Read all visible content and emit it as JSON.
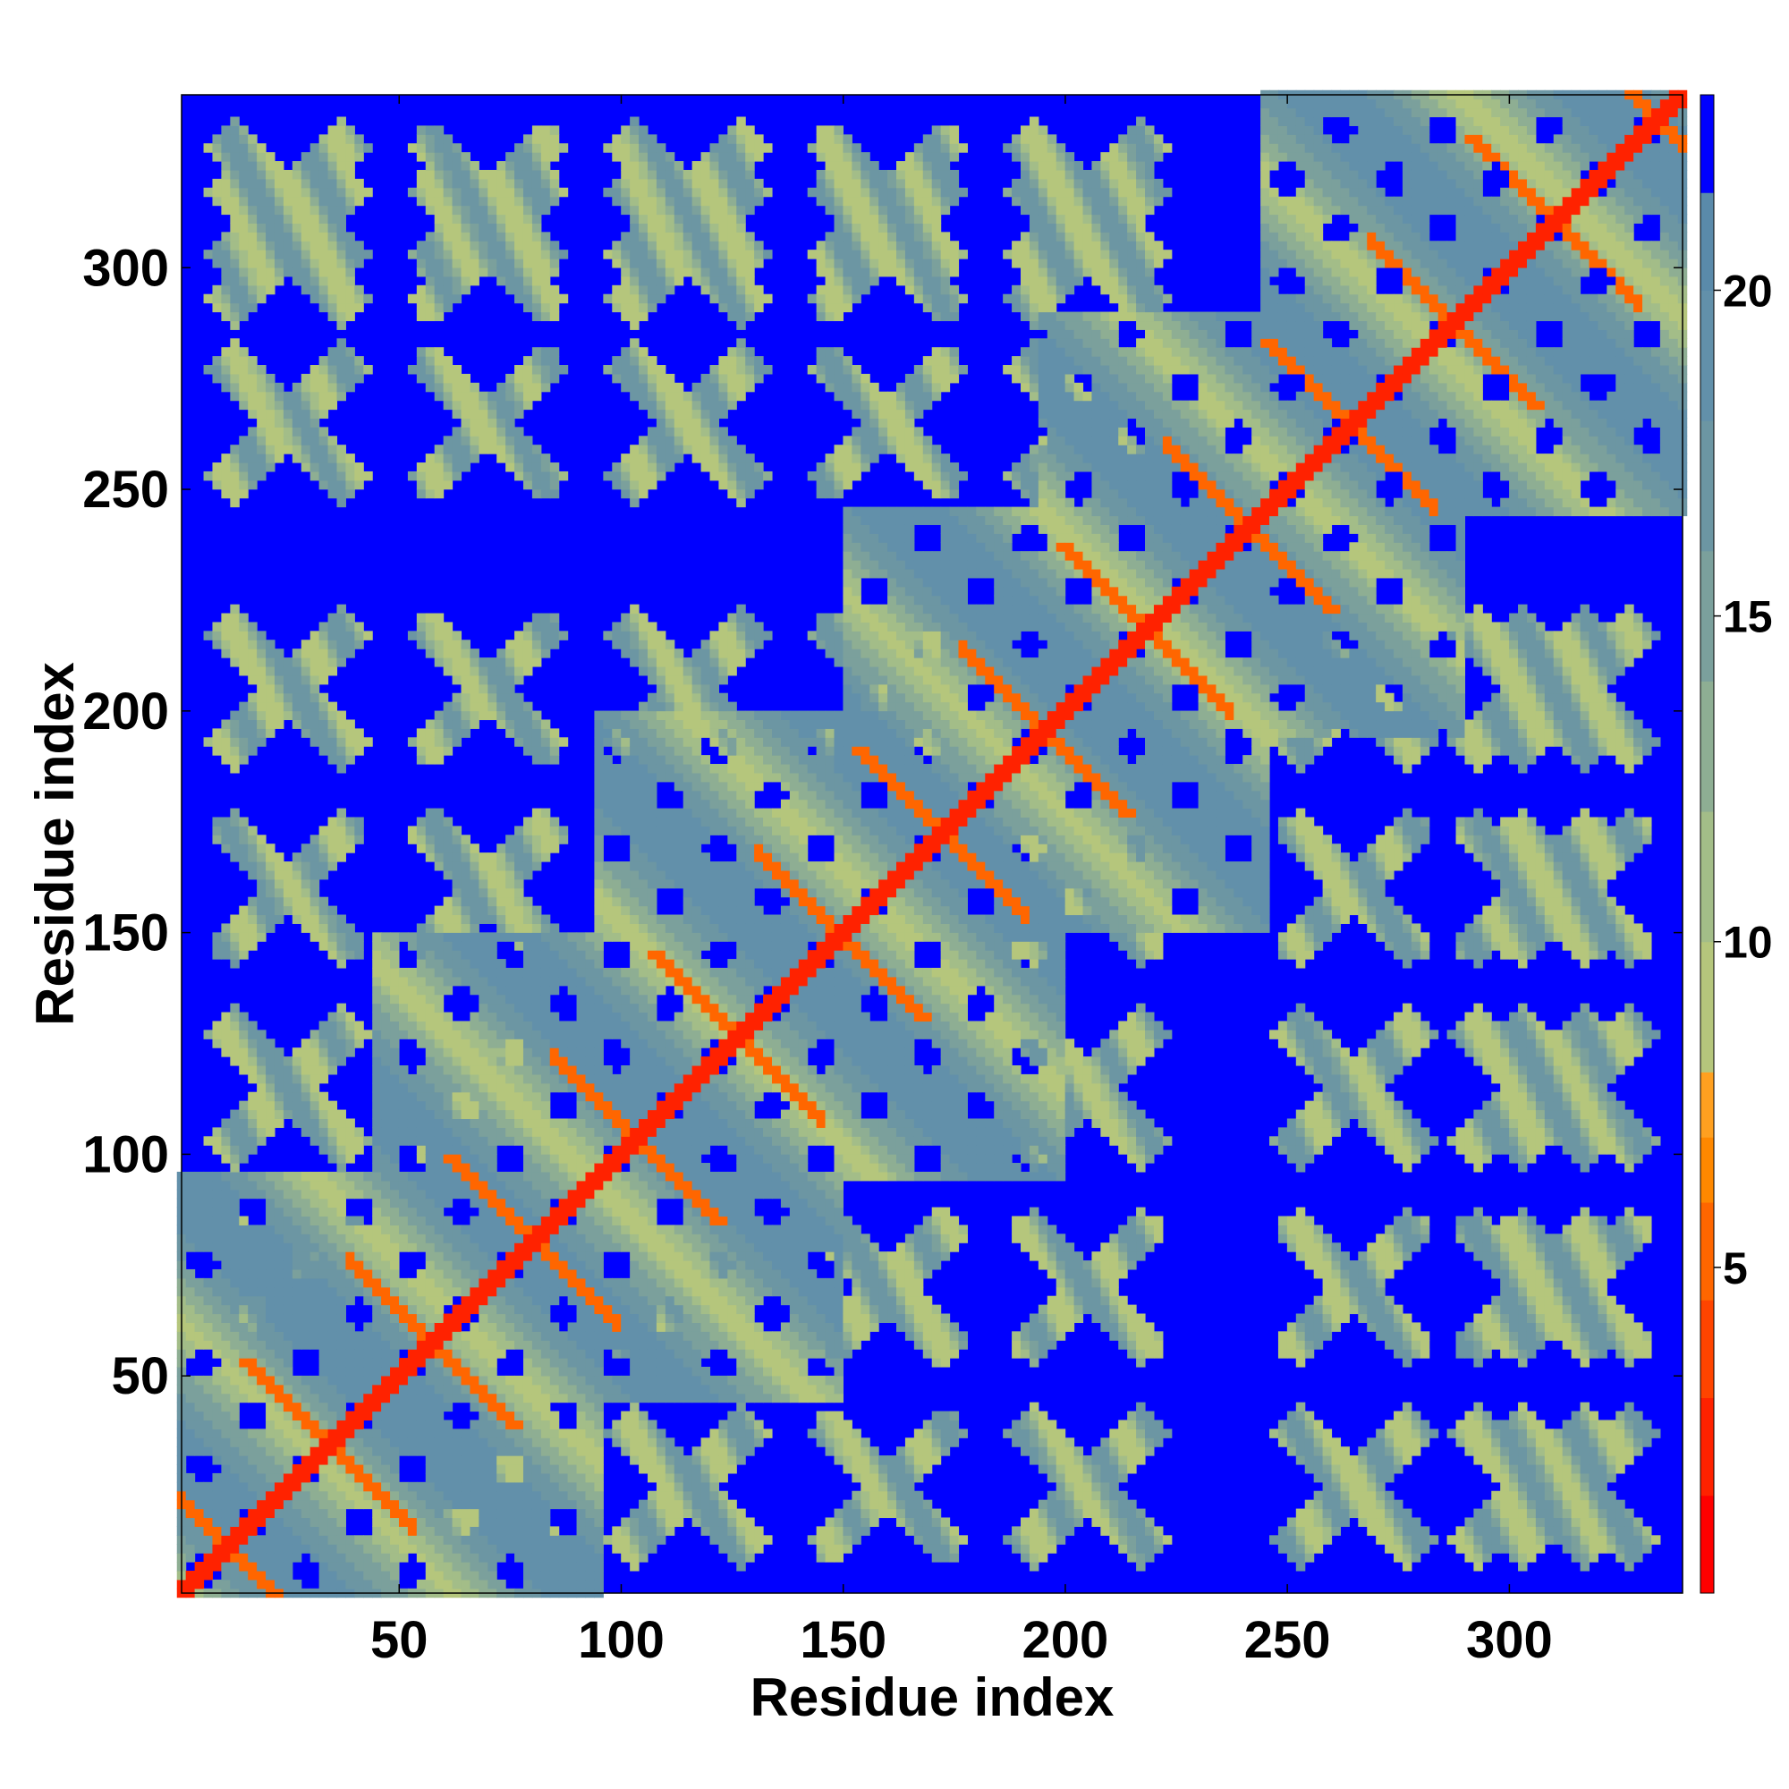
{
  "chart_data": {
    "type": "heatmap",
    "title": "",
    "xlabel": "Residue index",
    "ylabel": "Residue index",
    "n_residues": 339,
    "xlim": [
      1,
      339
    ],
    "ylim": [
      1,
      339
    ],
    "x_ticks": [
      50,
      100,
      150,
      200,
      250,
      300
    ],
    "y_ticks": [
      50,
      100,
      150,
      200,
      250,
      300
    ],
    "grid": false,
    "background_value_color": "#0000ff",
    "colorbar": {
      "ticks": [
        5,
        10,
        15,
        20
      ],
      "range": [
        0,
        23
      ],
      "levels": [
        {
          "from": 0,
          "to": 1.5,
          "color": "#ff0000"
        },
        {
          "from": 1.5,
          "to": 3,
          "color": "#ff2200"
        },
        {
          "from": 3,
          "to": 4.5,
          "color": "#ff4400"
        },
        {
          "from": 4.5,
          "to": 6,
          "color": "#ff6600"
        },
        {
          "from": 6,
          "to": 7,
          "color": "#ff8800"
        },
        {
          "from": 7,
          "to": 8,
          "color": "#ffa020"
        },
        {
          "from": 8,
          "to": 10,
          "color": "#b5c67c"
        },
        {
          "from": 10,
          "to": 12,
          "color": "#a3bd88"
        },
        {
          "from": 12,
          "to": 14,
          "color": "#8eae93"
        },
        {
          "from": 14,
          "to": 16,
          "color": "#7ba09c"
        },
        {
          "from": 16,
          "to": 18,
          "color": "#6c96a3"
        },
        {
          "from": 18,
          "to": 20,
          "color": "#6290aa"
        },
        {
          "from": 20,
          "to": 21.5,
          "color": "#5a8aaa"
        },
        {
          "from": 21.5,
          "to": 23,
          "color": "#0000ff"
        }
      ]
    },
    "series": [
      {
        "type": "diagonal",
        "value": 2
      },
      {
        "type": "blocks_along_diagonal",
        "segments": [
          {
            "start": 1,
            "end": 95,
            "value": 12
          },
          {
            "start": 45,
            "end": 150,
            "value": 12
          },
          {
            "start": 95,
            "end": 200,
            "value": 12
          },
          {
            "start": 150,
            "end": 245,
            "value": 12
          },
          {
            "start": 195,
            "end": 290,
            "value": 12
          },
          {
            "start": 245,
            "end": 339,
            "value": 12
          }
        ]
      },
      {
        "type": "off_diagonal_contact_patches",
        "value": 13,
        "centers": [
          [
            25,
            305
          ],
          [
            25,
            265
          ],
          [
            25,
            205
          ],
          [
            25,
            160
          ],
          [
            25,
            115
          ],
          [
            25,
            70
          ],
          [
            70,
            305
          ],
          [
            70,
            265
          ],
          [
            70,
            205
          ],
          [
            70,
            160
          ],
          [
            70,
            115
          ],
          [
            115,
            305
          ],
          [
            115,
            265
          ],
          [
            115,
            205
          ],
          [
            160,
            305
          ],
          [
            160,
            265
          ],
          [
            160,
            205
          ],
          [
            205,
            305
          ],
          [
            205,
            265
          ],
          [
            205,
            115
          ],
          [
            205,
            70
          ],
          [
            205,
            25
          ],
          [
            265,
            25
          ],
          [
            265,
            70
          ],
          [
            265,
            115
          ],
          [
            265,
            160
          ],
          [
            315,
            25
          ],
          [
            315,
            70
          ],
          [
            315,
            115
          ],
          [
            315,
            160
          ],
          [
            315,
            205
          ]
        ]
      }
    ]
  }
}
